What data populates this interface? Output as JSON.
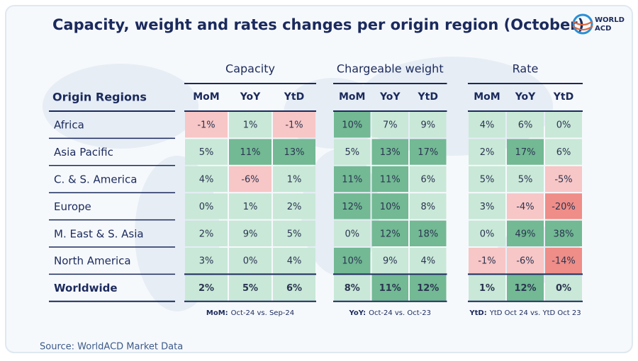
{
  "header": {
    "title": "Capacity, weight and rates changes per origin region (October)",
    "logo": [
      "WORLD",
      "ACD"
    ]
  },
  "table": {
    "row_header": "Origin Regions",
    "groups": [
      {
        "name": "Capacity",
        "columns": [
          "MoM",
          "YoY",
          "YtD"
        ]
      },
      {
        "name": "Chargeable weight",
        "columns": [
          "MoM",
          "YoY",
          "YtD"
        ]
      },
      {
        "name": "Rate",
        "columns": [
          "MoM",
          "YoY",
          "YtD"
        ]
      }
    ],
    "rows": [
      {
        "region": "Africa",
        "cells": [
          "-1%",
          "1%",
          "-1%",
          "10%",
          "7%",
          "9%",
          "4%",
          "6%",
          "0%"
        ]
      },
      {
        "region": "Asia Pacific",
        "cells": [
          "5%",
          "11%",
          "13%",
          "5%",
          "13%",
          "17%",
          "2%",
          "17%",
          "6%"
        ]
      },
      {
        "region": "C. & S. America",
        "cells": [
          "4%",
          "-6%",
          "1%",
          "11%",
          "11%",
          "6%",
          "5%",
          "5%",
          "-5%"
        ]
      },
      {
        "region": "Europe",
        "cells": [
          "0%",
          "1%",
          "2%",
          "12%",
          "10%",
          "8%",
          "3%",
          "-4%",
          "-20%"
        ]
      },
      {
        "region": "M. East & S. Asia",
        "cells": [
          "2%",
          "9%",
          "5%",
          "0%",
          "12%",
          "18%",
          "0%",
          "49%",
          "38%"
        ]
      },
      {
        "region": "North America",
        "cells": [
          "3%",
          "0%",
          "4%",
          "10%",
          "9%",
          "4%",
          "-1%",
          "-6%",
          "-14%"
        ]
      },
      {
        "region": "Worldwide",
        "cells": [
          "2%",
          "5%",
          "6%",
          "8%",
          "11%",
          "12%",
          "1%",
          "12%",
          "0%"
        ]
      }
    ]
  },
  "footnotes": [
    {
      "label": "MoM:",
      "text": "Oct-24 vs. Sep-24"
    },
    {
      "label": "YoY:",
      "text": "Oct-24 vs. Oct-23"
    },
    {
      "label": "YtD:",
      "text": "YtD Oct 24 vs. YtD Oct 23"
    }
  ],
  "source": "Source: WorldACD Market Data"
}
